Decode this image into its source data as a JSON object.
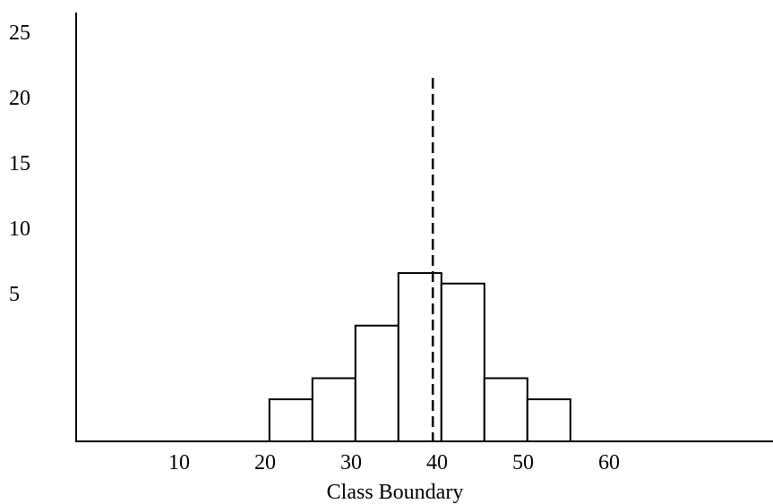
{
  "chart_data": {
    "type": "bar",
    "subtype": "histogram",
    "title": "",
    "xlabel": "Class Boundary",
    "ylabel": "",
    "bins": [
      {
        "start": 20.5,
        "end": 25.5,
        "value": 2
      },
      {
        "start": 25.5,
        "end": 30.5,
        "value": 3
      },
      {
        "start": 30.5,
        "end": 35.5,
        "value": 5.5
      },
      {
        "start": 35.5,
        "end": 40.5,
        "value": 8
      },
      {
        "start": 40.5,
        "end": 45.5,
        "value": 7.5
      },
      {
        "start": 45.5,
        "end": 50.5,
        "value": 3
      },
      {
        "start": 50.5,
        "end": 55.5,
        "value": 2
      }
    ],
    "xticks": [
      10,
      20,
      30,
      40,
      50,
      60
    ],
    "yticks": [
      5,
      10,
      15,
      20,
      25
    ],
    "reference_line": {
      "x": 39.5,
      "style": "dashed"
    },
    "grid": false,
    "fill_color": "#ffffff",
    "stroke_color": "#000000"
  }
}
